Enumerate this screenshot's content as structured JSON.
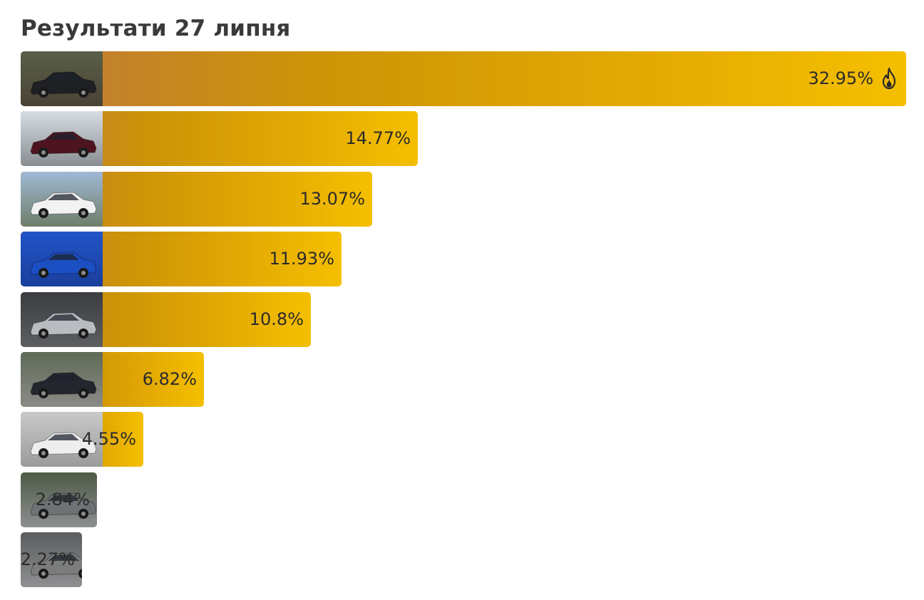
{
  "header": {
    "title": "Результати 27 липня"
  },
  "chart_data": {
    "type": "bar",
    "orientation": "horizontal",
    "title": "Результати 27 липня",
    "xlim": [
      0,
      32.95
    ],
    "categories": [
      "",
      "",
      "",
      "",
      "",
      "",
      "",
      "",
      ""
    ],
    "values": [
      32.95,
      14.77,
      13.07,
      11.93,
      10.8,
      6.82,
      4.55,
      2.84,
      2.27
    ],
    "labels": [
      "32.95%",
      "14.77%",
      "13.07%",
      "11.93%",
      "10.8%",
      "6.82%",
      "4.55%",
      "2.84%",
      "2.27%"
    ],
    "leader_icon": "fire-icon",
    "bar_colors": [
      "#c2822d",
      "#cc9406",
      "#e0a604",
      "#f5bf00"
    ],
    "thumbnails": [
      {
        "icon": "car-photo-dark-sedan-on-dirt",
        "body": "#1f2023",
        "bg_top": "#5a6048",
        "bg_bottom": "#4a4236"
      },
      {
        "icon": "car-photo-burgundy-sedan",
        "body": "#4d1420",
        "bg_top": "#d7dde4",
        "bg_bottom": "#8a8e92"
      },
      {
        "icon": "car-photo-white-sedan-by-lake",
        "body": "#f2f2f2",
        "bg_top": "#9fb8d4",
        "bg_bottom": "#6f7f6a"
      },
      {
        "icon": "car-photo-blue-hatchback-front",
        "body": "#1b4fc4",
        "bg_top": "#2255c8",
        "bg_bottom": "#1a3e9c"
      },
      {
        "icon": "car-photo-silver-minivan-garage",
        "body": "#b9bcc0",
        "bg_top": "#3b3d41",
        "bg_bottom": "#5c5e60"
      },
      {
        "icon": "car-photo-black-sedan-front",
        "body": "#23262c",
        "bg_top": "#5f6a57",
        "bg_bottom": "#8a8a86"
      },
      {
        "icon": "car-photo-white-suv-front",
        "body": "#eeeeee",
        "bg_top": "#c9c9c9",
        "bg_bottom": "#9b9b9b"
      },
      {
        "icon": "car-photo-grey-sedan-yard",
        "body": "#6f7274",
        "bg_top": "#4d5a45",
        "bg_bottom": "#8d8f90"
      },
      {
        "icon": "car-photo-grey-compact-parking",
        "body": "#7b7d7b",
        "bg_top": "#5a5c5e",
        "bg_bottom": "#8f9092"
      }
    ]
  }
}
